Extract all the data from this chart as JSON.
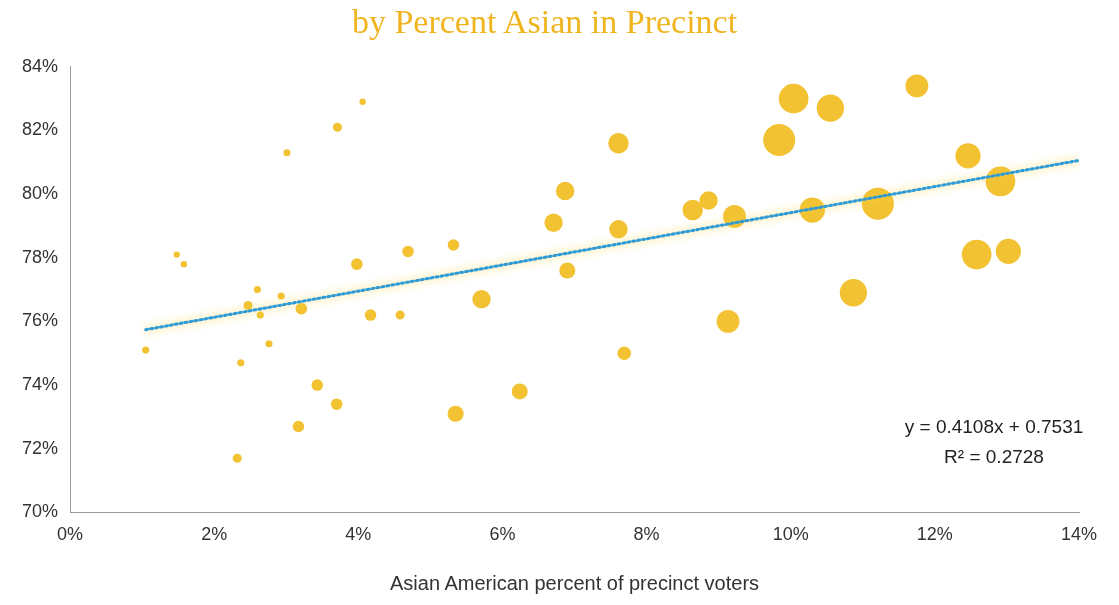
{
  "chart_data": {
    "type": "bubble",
    "title": "by Percent Asian in Precinct",
    "xlabel": "Asian American percent of precinct voters",
    "xlim": [
      0,
      14
    ],
    "xticks": [
      {
        "value": 0,
        "label": "0%"
      },
      {
        "value": 2,
        "label": "2%"
      },
      {
        "value": 4,
        "label": "4%"
      },
      {
        "value": 6,
        "label": "6%"
      },
      {
        "value": 8,
        "label": "8%"
      },
      {
        "value": 10,
        "label": "10%"
      },
      {
        "value": 12,
        "label": "12%"
      },
      {
        "value": 14,
        "label": "14%"
      }
    ],
    "ylim": [
      70,
      84
    ],
    "yticks": [
      {
        "value": 70,
        "label": "70%"
      },
      {
        "value": 72,
        "label": "72%"
      },
      {
        "value": 74,
        "label": "74%"
      },
      {
        "value": 76,
        "label": "76%"
      },
      {
        "value": 78,
        "label": "78%"
      },
      {
        "value": 80,
        "label": "80%"
      },
      {
        "value": 82,
        "label": "82%"
      },
      {
        "value": 84,
        "label": "84%"
      }
    ],
    "grid": false,
    "legend": false,
    "marker": "circle",
    "annotations": [
      "y = 0.4108x + 0.7531",
      "R² = 0.2728"
    ],
    "series": [
      {
        "type": "bubble",
        "color": "#f2c232",
        "x": [
          1.05,
          1.48,
          1.58,
          2.6,
          2.47,
          2.64,
          2.93,
          3.21,
          2.76,
          2.37,
          2.32,
          3.01,
          3.71,
          4.06,
          3.98,
          4.17,
          4.69,
          4.58,
          3.43,
          3.7,
          3.17,
          5.32,
          5.35,
          5.71,
          6.24,
          6.71,
          6.87,
          6.9,
          7.61,
          7.61,
          7.69,
          8.64,
          8.86,
          9.22,
          9.13,
          10.04,
          10.55,
          9.84,
          11.75,
          12.46,
          12.91,
          10.3,
          11.21,
          12.58,
          13.02,
          10.87
        ],
        "values": [
          75.1,
          78.1,
          77.8,
          77.0,
          76.5,
          76.2,
          76.8,
          76.4,
          75.3,
          74.7,
          71.7,
          81.3,
          82.1,
          82.9,
          77.8,
          76.2,
          78.2,
          76.2,
          74.0,
          73.4,
          72.7,
          78.4,
          73.1,
          76.7,
          73.8,
          79.1,
          80.1,
          77.6,
          81.6,
          78.9,
          75.0,
          79.5,
          79.8,
          79.3,
          76.0,
          83.0,
          82.7,
          81.7,
          83.4,
          81.2,
          80.4,
          79.5,
          79.7,
          78.1,
          78.2,
          76.9
        ],
        "sizes": [
          0.05,
          0.04,
          0.04,
          0.05,
          0.08,
          0.05,
          0.05,
          0.13,
          0.05,
          0.05,
          0.08,
          0.05,
          0.08,
          0.04,
          0.13,
          0.13,
          0.13,
          0.08,
          0.13,
          0.13,
          0.13,
          0.13,
          0.25,
          0.33,
          0.25,
          0.33,
          0.33,
          0.25,
          0.41,
          0.33,
          0.18,
          0.41,
          0.33,
          0.51,
          0.51,
          0.86,
          0.73,
          1,
          0.51,
          0.62,
          0.86,
          0.62,
          1,
          0.86,
          0.62,
          0.73
        ]
      },
      {
        "type": "line",
        "color": "#2e9ad6",
        "line_style": "dotted",
        "marker": "none",
        "x": [
          1.05,
          14
        ],
        "values": [
          75.74,
          81.06
        ]
      }
    ]
  }
}
